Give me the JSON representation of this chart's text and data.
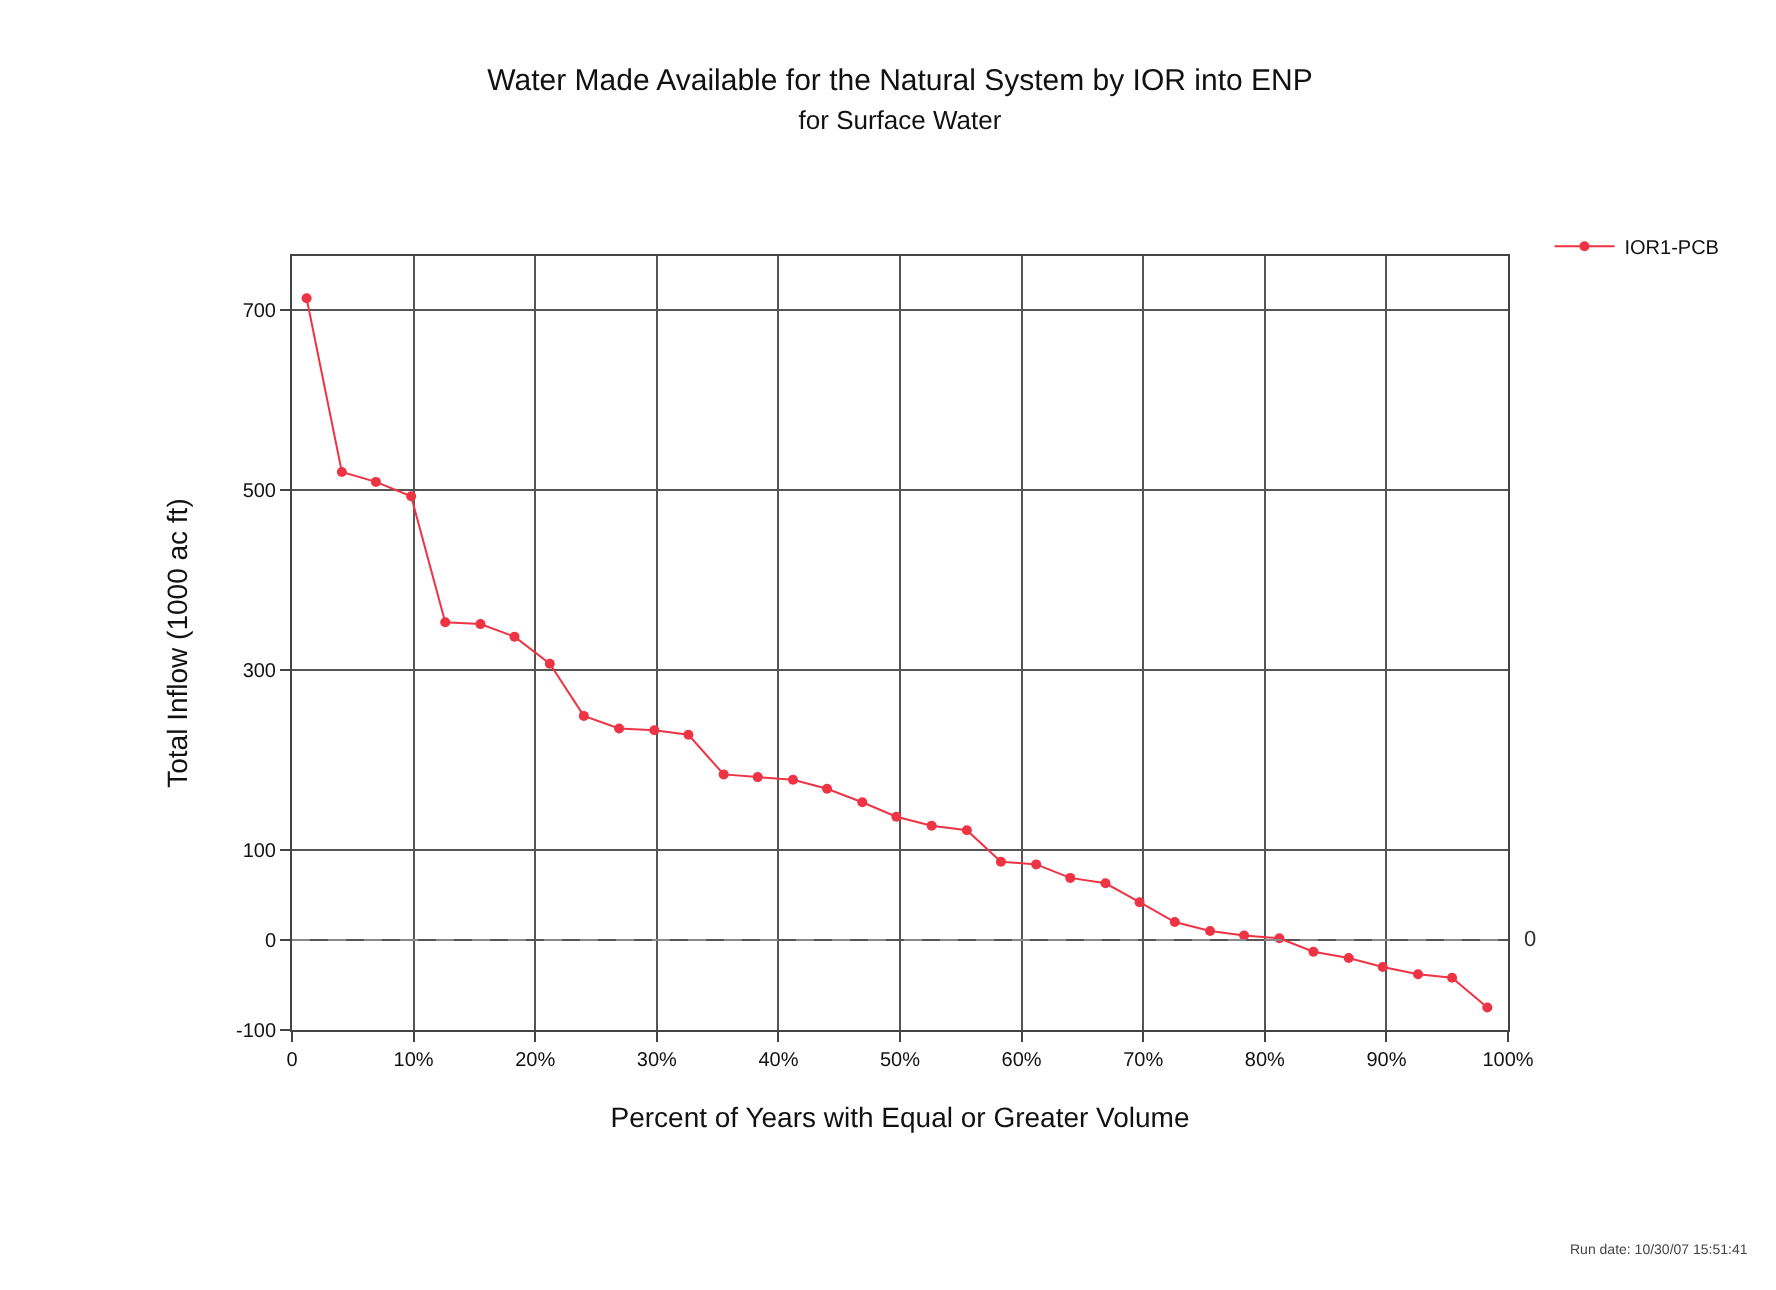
{
  "chart_data": {
    "type": "line",
    "title": "Water Made Available for the Natural System by IOR into ENP",
    "subtitle": "for Surface Water",
    "xlabel": "Percent of Years with Equal or Greater Volume",
    "ylabel": "Total Inflow (1000 ac ft)",
    "x": [
      1.2,
      4.1,
      6.9,
      9.8,
      12.6,
      15.5,
      18.3,
      21.2,
      24.0,
      26.9,
      29.8,
      32.6,
      35.5,
      38.3,
      41.2,
      44.0,
      46.9,
      49.7,
      52.6,
      55.5,
      58.3,
      61.2,
      64.0,
      66.9,
      69.7,
      72.6,
      75.5,
      78.3,
      81.2,
      84.0,
      86.9,
      89.7,
      92.6,
      95.4,
      98.3
    ],
    "series": [
      {
        "name": "IOR1-PCB",
        "color": "#ee3344",
        "values": [
          713,
          520,
          509,
          493,
          353,
          351,
          337,
          307,
          249,
          235,
          233,
          228,
          184,
          181,
          178,
          168,
          153,
          137,
          127,
          122,
          87,
          84,
          69,
          63,
          42,
          20,
          10,
          5,
          2,
          -13,
          -20,
          -30,
          -38,
          -42,
          -75
        ]
      }
    ],
    "xlim": [
      0,
      100
    ],
    "xticks": [
      0,
      {
        "value": 10,
        "label": "10%"
      },
      {
        "value": 20,
        "label": "20%"
      },
      {
        "value": 30,
        "label": "30%"
      },
      {
        "value": 40,
        "label": "40%"
      },
      {
        "value": 50,
        "label": "50%"
      },
      {
        "value": 60,
        "label": "60%"
      },
      {
        "value": 70,
        "label": "70%"
      },
      {
        "value": 80,
        "label": "80%"
      },
      {
        "value": 90,
        "label": "90%"
      },
      {
        "value": 100,
        "label": "100%"
      }
    ],
    "ylim": [
      -100,
      760
    ],
    "yticks": [
      -100,
      0,
      100,
      300,
      500,
      700
    ],
    "ref_lines": [
      {
        "axis": "y",
        "value": 0,
        "label": "0",
        "line_style": "dashed",
        "color": "#888888"
      }
    ],
    "annotations": [
      "Run date: 10/30/07 15:51:41"
    ],
    "grid": true,
    "legend": "top right",
    "marker": "circle",
    "line_style": "solid"
  }
}
